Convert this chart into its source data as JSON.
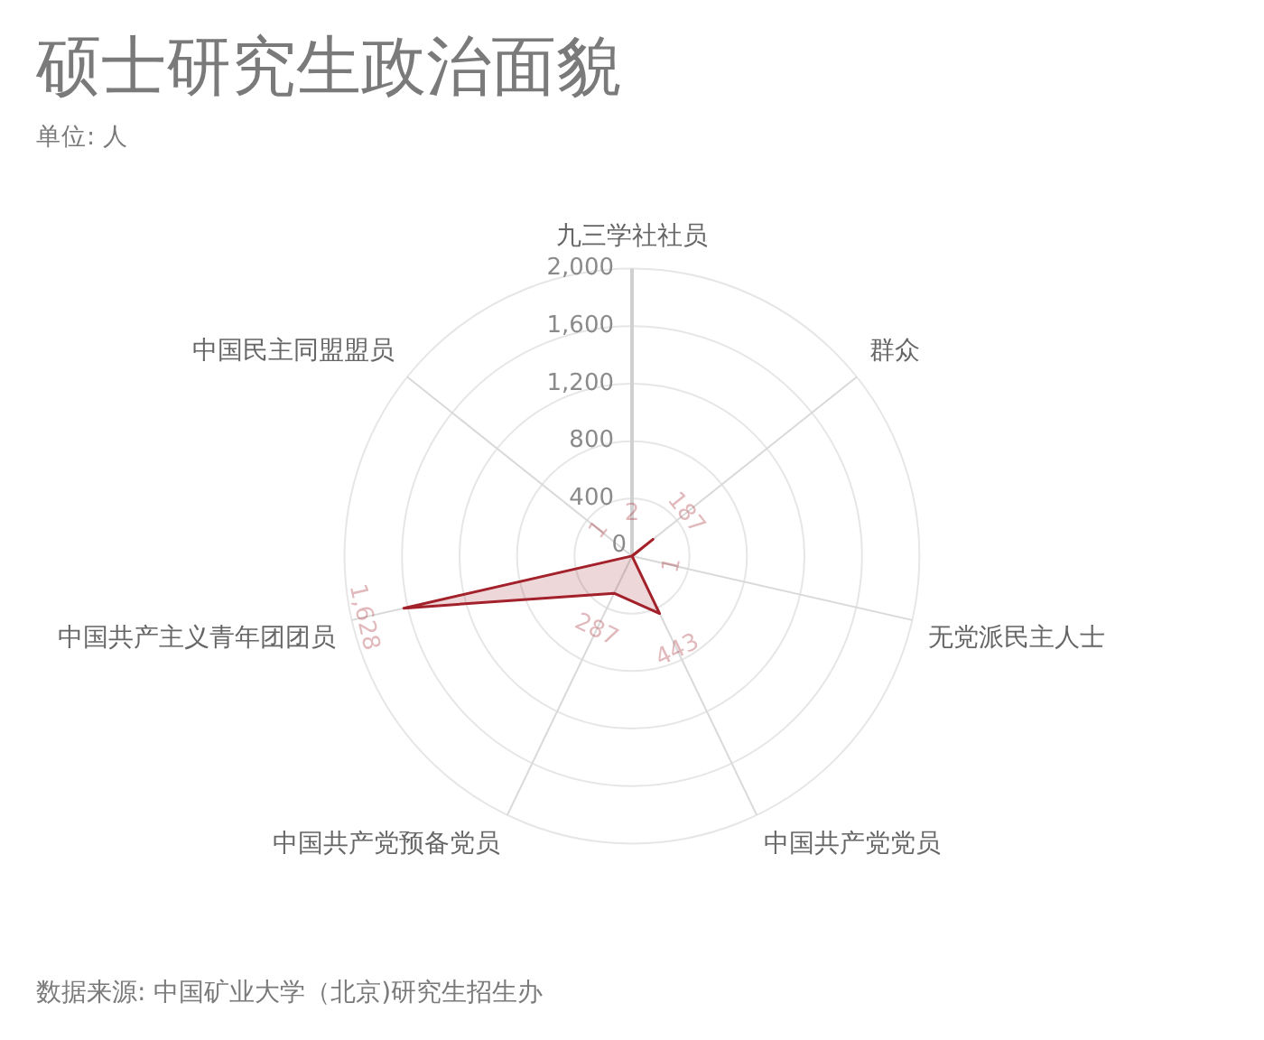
{
  "chart_data": {
    "type": "radar",
    "title": "硕士研究生政治面貌",
    "subtitle": "单位: 人",
    "annotations": [
      "数据来源: 中国矿业大学（北京)研究生招生办"
    ],
    "categories": [
      "九三学社社员",
      "群众",
      "无党派民主人士",
      "中国共产党党员",
      "中国共产党预备党员",
      "中国共产主义青年团团员",
      "中国民主同盟盟员"
    ],
    "series": [
      {
        "color": "#a3212a",
        "values": [
          2,
          187,
          1,
          443,
          287,
          1628,
          1
        ],
        "value_labels": [
          "2",
          "187",
          "1",
          "443",
          "287",
          "1,628",
          "1"
        ]
      }
    ],
    "ylim": [
      0,
      2000
    ],
    "yticks": [
      0,
      400,
      800,
      {
        "value": 1200,
        "label": "1,200"
      },
      {
        "value": 1600,
        "label": "1,600"
      },
      {
        "value": 2000,
        "label": "2,000"
      }
    ],
    "grid": true,
    "marker": "none"
  }
}
